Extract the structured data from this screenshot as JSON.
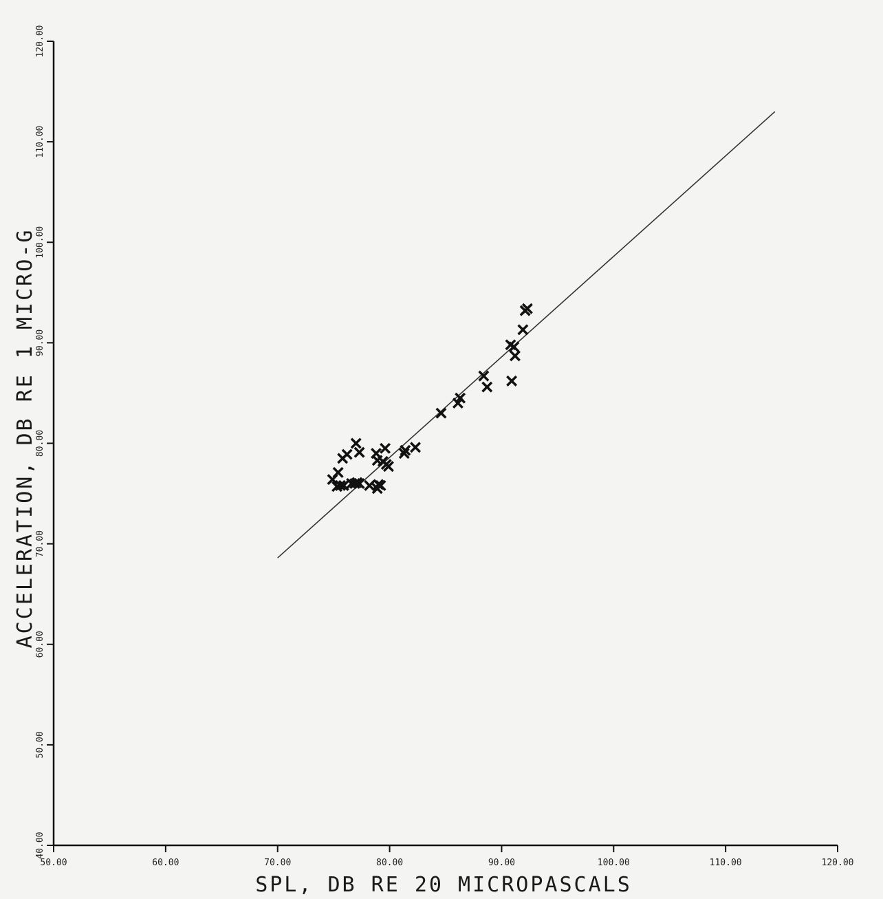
{
  "chart_data": {
    "type": "scatter",
    "title": "",
    "xlabel": "SPL, DB RE 20 MICROPASCALS",
    "ylabel": "ACCELERATION, DB RE 1 MICRO-G",
    "xlim": [
      50,
      120
    ],
    "ylim": [
      40,
      120
    ],
    "xticks": [
      "50.00",
      "60.00",
      "70.00",
      "80.00",
      "90.00",
      "100.00",
      "110.00",
      "120.00"
    ],
    "yticks": [
      "40.00",
      "50.00",
      "60.00",
      "70.00",
      "80.00",
      "90.00",
      "100.00",
      "110.00",
      "120.00"
    ],
    "grid": false,
    "points": [
      [
        74.9,
        76.4
      ],
      [
        75.3,
        75.7
      ],
      [
        75.4,
        77.1
      ],
      [
        75.6,
        75.8
      ],
      [
        75.9,
        75.8
      ],
      [
        75.8,
        78.5
      ],
      [
        76.2,
        78.9
      ],
      [
        76.6,
        76.0
      ],
      [
        76.9,
        76.0
      ],
      [
        77.1,
        76.1
      ],
      [
        77.3,
        76.0
      ],
      [
        77.0,
        80.0
      ],
      [
        77.3,
        79.1
      ],
      [
        78.2,
        75.8
      ],
      [
        78.8,
        79.0
      ],
      [
        78.9,
        75.5
      ],
      [
        79.0,
        75.9
      ],
      [
        79.2,
        75.8
      ],
      [
        78.9,
        78.3
      ],
      [
        79.4,
        78.2
      ],
      [
        79.7,
        77.9
      ],
      [
        79.9,
        77.7
      ],
      [
        79.6,
        79.5
      ],
      [
        81.3,
        79.0
      ],
      [
        81.4,
        79.3
      ],
      [
        82.3,
        79.6
      ],
      [
        84.6,
        83.0
      ],
      [
        86.1,
        84.0
      ],
      [
        86.3,
        84.5
      ],
      [
        88.4,
        86.7
      ],
      [
        88.7,
        85.6
      ],
      [
        90.8,
        89.8
      ],
      [
        91.1,
        89.6
      ],
      [
        90.9,
        86.2
      ],
      [
        91.2,
        88.7
      ],
      [
        91.9,
        91.3
      ],
      [
        92.1,
        93.2
      ],
      [
        92.3,
        93.4
      ]
    ],
    "fit_line": [
      [
        70.0,
        68.6
      ],
      [
        114.4,
        113.0
      ]
    ]
  }
}
